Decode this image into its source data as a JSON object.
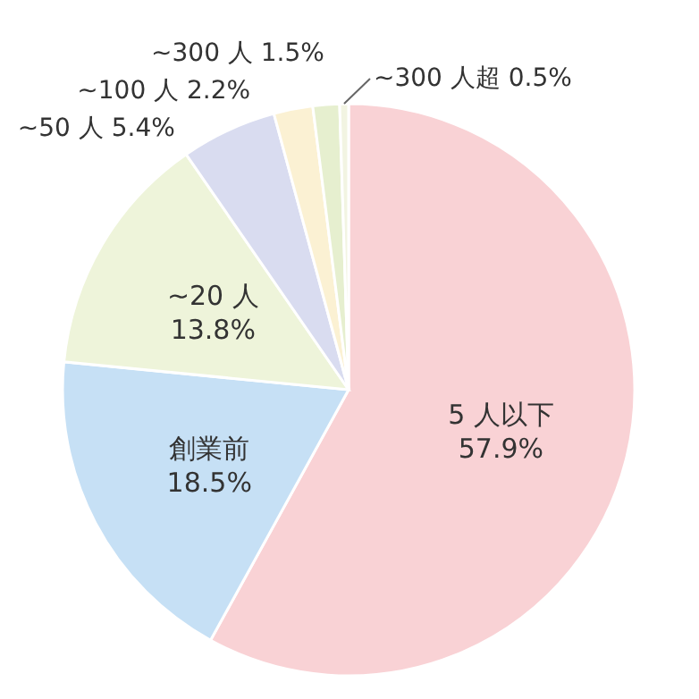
{
  "chart_data": {
    "type": "pie",
    "categories": [
      "5 人以下",
      "創業前",
      "~20 人",
      "~50 人",
      "~100 人",
      "~300 人",
      "~300 人超"
    ],
    "values": [
      57.9,
      18.5,
      13.8,
      5.4,
      2.2,
      1.5,
      0.5
    ],
    "value_labels": [
      "57.9%",
      "18.5%",
      "13.8%",
      "5.4%",
      "2.2%",
      "1.5%",
      "0.5%"
    ],
    "colors": [
      "#f9d2d5",
      "#c6e0f5",
      "#eef4da",
      "#d9dcf0",
      "#fbf1d3",
      "#e6efcf",
      "#f2f4e2"
    ],
    "legend": false
  }
}
